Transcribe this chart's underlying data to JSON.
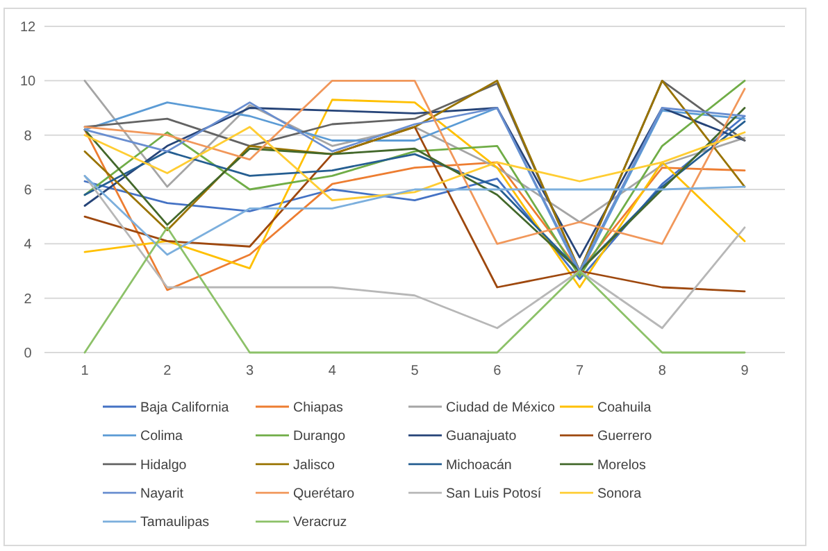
{
  "chart_data": {
    "type": "line",
    "categories": [
      "1",
      "2",
      "3",
      "4",
      "5",
      "6",
      "7",
      "8",
      "9"
    ],
    "ylim": [
      0,
      12
    ],
    "yticks": [
      0,
      2,
      4,
      6,
      8,
      10,
      12
    ],
    "grid": "y",
    "legend": "bottom",
    "marker": "none",
    "series": [
      {
        "name": "Baja California",
        "color": "#4472c4",
        "values": [
          6.3,
          5.5,
          5.2,
          6,
          5.6,
          6.4,
          2.7,
          6.2,
          8.7
        ]
      },
      {
        "name": "Chiapas",
        "color": "#ed7d31",
        "values": [
          8.2,
          2.3,
          3.6,
          6.2,
          6.8,
          7,
          3,
          6.8,
          6.7
        ]
      },
      {
        "name": "Ciudad de México",
        "color": "#a5a5a5",
        "values": [
          10,
          6.1,
          9.1,
          7.6,
          8.3,
          6.8,
          4.8,
          6.9,
          7.9
        ]
      },
      {
        "name": "Coahuila",
        "color": "#ffc000",
        "values": [
          3.7,
          4.1,
          3.1,
          9.3,
          9.2,
          6.8,
          2.4,
          7,
          4.1
        ]
      },
      {
        "name": "Colima",
        "color": "#5b9bd5",
        "values": [
          8.2,
          9.2,
          8.7,
          7.8,
          7.8,
          9,
          2.9,
          8.9,
          8.6
        ]
      },
      {
        "name": "Durango",
        "color": "#70ad47",
        "values": [
          5.8,
          8.1,
          6,
          6.5,
          7.4,
          7.6,
          2.8,
          7.6,
          10
        ]
      },
      {
        "name": "Guanajuato",
        "color": "#264478",
        "values": [
          5.4,
          7.6,
          9,
          8.9,
          8.8,
          9,
          3.5,
          9,
          7.8
        ]
      },
      {
        "name": "Guerrero",
        "color": "#9e480e",
        "values": [
          5,
          4.1,
          3.9,
          7.3,
          8.3,
          2.4,
          3,
          2.4,
          2.25
        ]
      },
      {
        "name": "Hidalgo",
        "color": "#636363",
        "values": [
          8.3,
          8.6,
          7.6,
          8.4,
          8.6,
          9.9,
          3,
          10,
          7.8
        ]
      },
      {
        "name": "Jalisco",
        "color": "#997300",
        "values": [
          7.4,
          4.5,
          7.6,
          7.3,
          8.3,
          10,
          3,
          10,
          6.1
        ]
      },
      {
        "name": "Michoacán",
        "color": "#255e91",
        "values": [
          5.8,
          7.4,
          6.5,
          6.7,
          7.3,
          6.1,
          3,
          6.1,
          8.5
        ]
      },
      {
        "name": "Morelos",
        "color": "#43682b",
        "values": [
          8.2,
          4.7,
          7.5,
          7.3,
          7.5,
          5.8,
          3,
          6,
          9
        ]
      },
      {
        "name": "Nayarit",
        "color": "#698ed0",
        "values": [
          8.2,
          7.4,
          9.2,
          7.4,
          8.4,
          9,
          3,
          9,
          8.7
        ]
      },
      {
        "name": "Querétaro",
        "color": "#f1975a",
        "values": [
          8.3,
          8,
          7.1,
          10,
          10,
          4,
          4.8,
          4,
          9.7
        ]
      },
      {
        "name": "San Luis Potosí",
        "color": "#b7b7b7",
        "values": [
          6.5,
          2.4,
          2.4,
          2.4,
          2.1,
          0.9,
          3,
          0.9,
          4.6
        ]
      },
      {
        "name": "Sonora",
        "color": "#ffcd33",
        "values": [
          8,
          6.6,
          8.3,
          5.6,
          5.9,
          7,
          6.3,
          7,
          8.1
        ]
      },
      {
        "name": "Tamaulipas",
        "color": "#7cafdd",
        "values": [
          6.5,
          3.6,
          5.3,
          5.3,
          6,
          6,
          6,
          6,
          6.1
        ]
      },
      {
        "name": "Veracruz",
        "color": "#8cc168",
        "values": [
          0,
          4.6,
          0,
          0,
          0,
          0,
          3,
          0,
          0
        ]
      }
    ]
  }
}
